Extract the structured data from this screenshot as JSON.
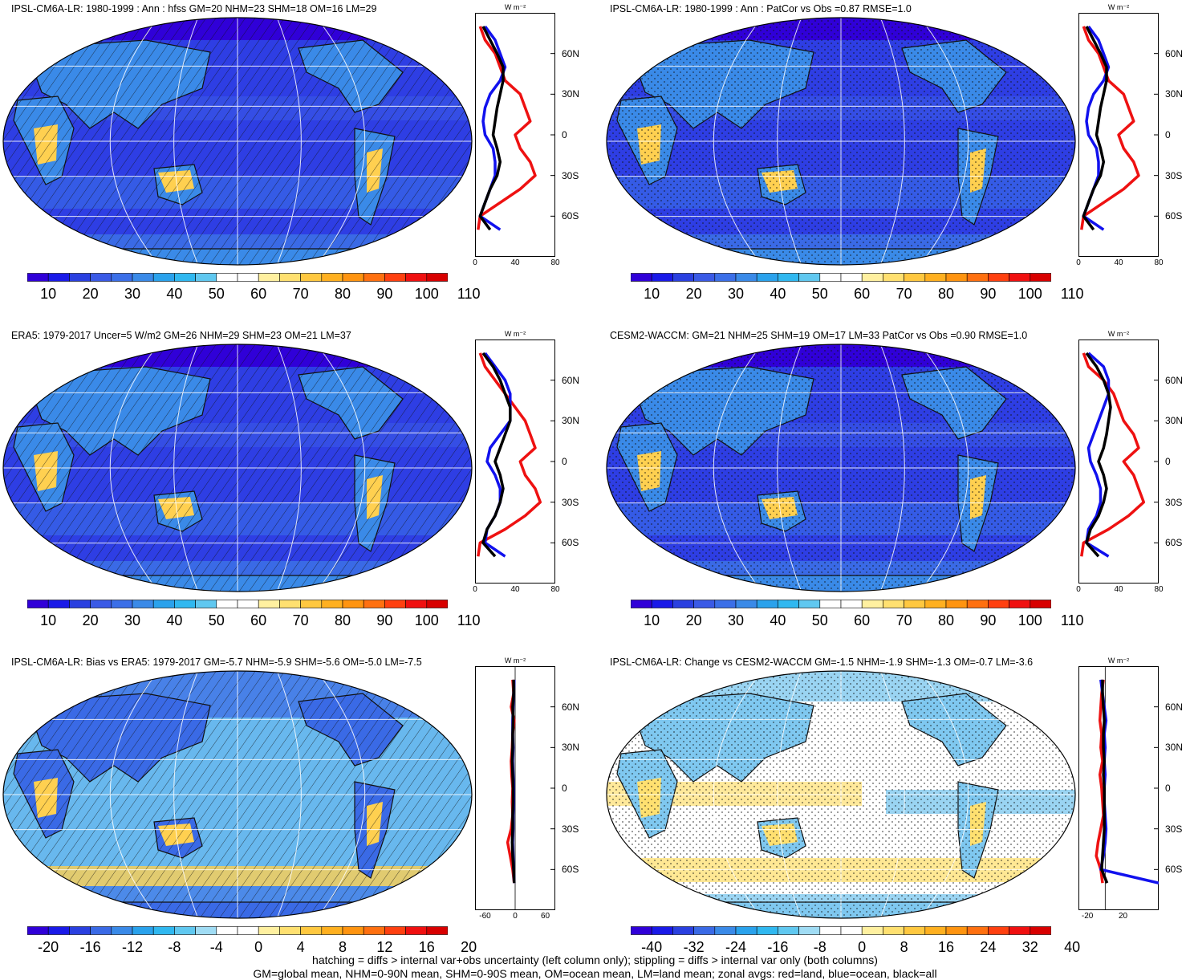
{
  "footer": {
    "line1": "hatching = diffs > internal var+obs uncertainty (left column only); stippling = diffs > internal var only (both columns)",
    "line2": "GM=global mean, NHM=0-90N mean, SHM=0-90S mean, OM=ocean mean, LM=land mean; zonal avgs: red=land, blue=ocean, black=all"
  },
  "lat_labels": [
    "60N",
    "30N",
    "0",
    "30S",
    "60S"
  ],
  "unit_label": "W m⁻²",
  "colors": {
    "land": "#ee1111",
    "ocean": "#1111ee",
    "all": "#000000"
  },
  "panels": [
    {
      "title": "IPSL-CM6A-LR: 1980-1999 : Ann : hfss GM=20 NHM=23 SHM=18 OM=16 LM=29",
      "colorbar_labels": [
        "10",
        "20",
        "30",
        "40",
        "50",
        "60",
        "70",
        "80",
        "90",
        "100",
        "110"
      ],
      "zonal_ticks": [
        "0",
        "40",
        "80"
      ],
      "pattern": "hatch",
      "kind": "abs"
    },
    {
      "title": "IPSL-CM6A-LR: 1980-1999 : Ann : PatCor vs Obs =0.87 RMSE=1.0",
      "colorbar_labels": [
        "10",
        "20",
        "30",
        "40",
        "50",
        "60",
        "70",
        "80",
        "90",
        "100",
        "110"
      ],
      "zonal_ticks": [
        "0",
        "40",
        "80"
      ],
      "pattern": "stipple",
      "kind": "abs"
    },
    {
      "title": "ERA5: 1979-2017 Uncer=5 W/m2 GM=26 NHM=29 SHM=23 OM=21 LM=37",
      "colorbar_labels": [
        "10",
        "20",
        "30",
        "40",
        "50",
        "60",
        "70",
        "80",
        "90",
        "100",
        "110"
      ],
      "zonal_ticks": [
        "0",
        "40",
        "80"
      ],
      "pattern": "hatch",
      "kind": "abs"
    },
    {
      "title": "CESM2-WACCM: GM=21 NHM=25 SHM=19 OM=17 LM=33 PatCor vs Obs =0.90 RMSE=1.0",
      "colorbar_labels": [
        "10",
        "20",
        "30",
        "40",
        "50",
        "60",
        "70",
        "80",
        "90",
        "100",
        "110"
      ],
      "zonal_ticks": [
        "0",
        "40",
        "80"
      ],
      "pattern": "stipple",
      "kind": "abs"
    },
    {
      "title": "IPSL-CM6A-LR: Bias vs ERA5: 1979-2017 GM=-5.7 NHM=-5.9 SHM=-5.6 OM=-5.0 LM=-7.5",
      "colorbar_labels": [
        "-20",
        "-16",
        "-12",
        "-8",
        "-4",
        "0",
        "4",
        "8",
        "12",
        "16",
        "20"
      ],
      "zonal_ticks": [
        "-60",
        "0",
        "60"
      ],
      "pattern": "hatch",
      "kind": "diff"
    },
    {
      "title": "IPSL-CM6A-LR: Change vs CESM2-WACCM GM=-1.5 NHM=-1.9 SHM=-1.3 OM=-0.7 LM=-3.6",
      "colorbar_labels": [
        "-40",
        "-32",
        "-24",
        "-16",
        "-8",
        "0",
        "8",
        "16",
        "24",
        "32",
        "40"
      ],
      "zonal_ticks": [
        "-20",
        "20"
      ],
      "pattern": "stipple",
      "kind": "change"
    }
  ],
  "chart_data": [
    {
      "type": "line",
      "title": "IPSL-CM6A-LR: 1980-1999 : Ann : hfss GM=20 NHM=23 SHM=18 OM=16 LM=29",
      "xlabel": "W m-2",
      "xlim": [
        0,
        80
      ],
      "ylim": [
        -90,
        90
      ],
      "y": [
        80,
        70,
        60,
        50,
        40,
        30,
        20,
        10,
        0,
        -10,
        -20,
        -30,
        -40,
        -50,
        -60,
        -70
      ],
      "series": [
        {
          "name": "land",
          "x": [
            5,
            10,
            20,
            25,
            30,
            45,
            50,
            55,
            40,
            45,
            55,
            60,
            45,
            25,
            5,
            3
          ]
        },
        {
          "name": "ocean",
          "x": [
            10,
            20,
            25,
            30,
            25,
            15,
            10,
            8,
            10,
            18,
            20,
            20,
            15,
            10,
            5,
            25
          ]
        },
        {
          "name": "all",
          "x": [
            8,
            15,
            22,
            28,
            28,
            25,
            22,
            20,
            18,
            22,
            25,
            22,
            15,
            10,
            5,
            15
          ]
        }
      ]
    },
    {
      "type": "line",
      "title": "IPSL-CM6A-LR: 1980-1999 : Ann : PatCor vs Obs =0.87 RMSE=1.0",
      "xlabel": "W m-2",
      "xlim": [
        0,
        80
      ],
      "ylim": [
        -90,
        90
      ],
      "y": [
        80,
        70,
        60,
        50,
        40,
        30,
        20,
        10,
        0,
        -10,
        -20,
        -30,
        -40,
        -50,
        -60,
        -70
      ],
      "series": [
        {
          "name": "land",
          "x": [
            5,
            10,
            20,
            25,
            30,
            45,
            50,
            55,
            40,
            45,
            55,
            60,
            45,
            25,
            5,
            3
          ]
        },
        {
          "name": "ocean",
          "x": [
            10,
            20,
            25,
            30,
            25,
            15,
            10,
            8,
            10,
            18,
            20,
            20,
            15,
            10,
            5,
            25
          ]
        },
        {
          "name": "all",
          "x": [
            8,
            15,
            22,
            28,
            28,
            25,
            22,
            20,
            18,
            22,
            25,
            22,
            15,
            10,
            5,
            15
          ]
        }
      ]
    },
    {
      "type": "line",
      "title": "ERA5: 1979-2017 Uncer=5 W/m2 GM=26 NHM=29 SHM=23 OM=21 LM=37",
      "xlabel": "W m-2",
      "xlim": [
        0,
        80
      ],
      "ylim": [
        -90,
        90
      ],
      "y": [
        80,
        70,
        60,
        50,
        40,
        30,
        20,
        10,
        0,
        -10,
        -20,
        -30,
        -40,
        -50,
        -60,
        -70
      ],
      "series": [
        {
          "name": "land",
          "x": [
            5,
            10,
            20,
            30,
            40,
            50,
            55,
            60,
            45,
            50,
            60,
            65,
            50,
            30,
            5,
            3
          ]
        },
        {
          "name": "ocean",
          "x": [
            10,
            20,
            30,
            35,
            35,
            35,
            25,
            15,
            12,
            20,
            25,
            25,
            20,
            12,
            10,
            30
          ]
        },
        {
          "name": "all",
          "x": [
            8,
            18,
            25,
            30,
            35,
            35,
            30,
            25,
            20,
            25,
            28,
            25,
            20,
            12,
            8,
            20
          ]
        }
      ]
    },
    {
      "type": "line",
      "title": "CESM2-WACCM: GM=21 NHM=25 SHM=19 OM=17 LM=33 PatCor vs Obs =0.90 RMSE=1.0",
      "xlabel": "W m-2",
      "xlim": [
        0,
        80
      ],
      "ylim": [
        -90,
        90
      ],
      "y": [
        80,
        70,
        60,
        50,
        40,
        30,
        20,
        10,
        0,
        -10,
        -20,
        -30,
        -40,
        -50,
        -60,
        -70
      ],
      "series": [
        {
          "name": "land",
          "x": [
            5,
            10,
            25,
            35,
            40,
            45,
            55,
            60,
            45,
            55,
            60,
            65,
            50,
            30,
            5,
            3
          ]
        },
        {
          "name": "ocean",
          "x": [
            10,
            25,
            30,
            30,
            25,
            20,
            15,
            10,
            12,
            18,
            22,
            22,
            18,
            10,
            8,
            30
          ]
        },
        {
          "name": "all",
          "x": [
            8,
            18,
            25,
            30,
            32,
            30,
            28,
            25,
            20,
            25,
            28,
            25,
            20,
            12,
            8,
            20
          ]
        }
      ]
    },
    {
      "type": "line",
      "title": "IPSL-CM6A-LR: Bias vs ERA5: 1979-2017 GM=-5.7 NHM=-5.9 SHM=-5.6 OM=-5.0 LM=-7.5",
      "xlabel": "W m-2",
      "xlim": [
        -80,
        80
      ],
      "ylim": [
        -90,
        90
      ],
      "y": [
        80,
        70,
        60,
        50,
        40,
        30,
        20,
        10,
        0,
        -10,
        -20,
        -30,
        -40,
        -50,
        -60,
        -70
      ],
      "series": [
        {
          "name": "land",
          "x": [
            -5,
            -3,
            -8,
            -2,
            -5,
            -6,
            -8,
            -7,
            -5,
            -6,
            -5,
            -8,
            -15,
            -10,
            -5,
            -2
          ]
        },
        {
          "name": "ocean",
          "x": [
            -2,
            -3,
            -4,
            -5,
            -5,
            -4,
            -5,
            -4,
            -3,
            -3,
            -4,
            -4,
            -5,
            -4,
            -3,
            -2
          ]
        },
        {
          "name": "all",
          "x": [
            -3,
            -3,
            -5,
            -4,
            -5,
            -5,
            -6,
            -5,
            -4,
            -4,
            -5,
            -5,
            -6,
            -5,
            -3,
            -2
          ]
        }
      ]
    },
    {
      "type": "line",
      "title": "IPSL-CM6A-LR: Change vs CESM2-WACCM GM=-1.5 NHM=-1.9 SHM=-1.3 OM=-0.7 LM=-3.6",
      "xlabel": "W m-2",
      "xlim": [
        -30,
        60
      ],
      "ylim": [
        -90,
        90
      ],
      "y": [
        80,
        70,
        60,
        50,
        40,
        30,
        20,
        10,
        0,
        -10,
        -20,
        -30,
        -40,
        -50,
        -60,
        -70
      ],
      "series": [
        {
          "name": "land",
          "x": [
            -2,
            -4,
            -5,
            -6,
            -4,
            -5,
            -3,
            -6,
            -4,
            -3,
            -2,
            -5,
            -8,
            -10,
            -5,
            -3
          ]
        },
        {
          "name": "ocean",
          "x": [
            -5,
            -3,
            -1,
            1,
            -1,
            0,
            -1,
            0,
            -1,
            -1,
            0,
            1,
            0,
            -2,
            -5,
            60
          ]
        },
        {
          "name": "all",
          "x": [
            -3,
            -3,
            -2,
            -1,
            -2,
            -2,
            -1,
            -2,
            -1,
            -1,
            -1,
            -1,
            -2,
            -3,
            -4,
            2
          ]
        }
      ]
    }
  ]
}
